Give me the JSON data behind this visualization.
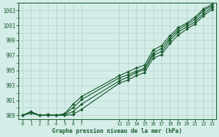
{
  "title": "Graphe pression niveau de la mer (hPa)",
  "background_color": "#d5ede8",
  "plot_bg_color": "#d5ede8",
  "grid_color": "#b0cfc8",
  "line_color": "#1a5c30",
  "ylim": [
    988.5,
    1004.0
  ],
  "yticks": [
    989,
    991,
    993,
    995,
    997,
    999,
    1001,
    1003
  ],
  "xticks_left": [
    0,
    1,
    2,
    3,
    4,
    5,
    6,
    7
  ],
  "xticks_right": [
    12,
    13,
    14,
    15,
    16,
    17,
    18,
    19,
    20,
    21,
    22,
    23
  ],
  "x_gap_start": 7,
  "x_gap_end": 12,
  "x_gap_plot_width": 4.5,
  "series": [
    {
      "x": [
        0,
        1,
        2,
        3,
        4,
        5,
        6,
        7,
        12,
        13,
        14,
        15,
        16,
        17,
        18,
        19,
        20,
        21,
        22,
        23
      ],
      "y": [
        989.0,
        989.5,
        989.0,
        989.1,
        989.0,
        989.2,
        990.5,
        991.5,
        994.3,
        994.8,
        995.3,
        995.7,
        997.7,
        998.3,
        999.6,
        1000.7,
        1001.3,
        1002.1,
        1003.2,
        1003.8
      ]
    },
    {
      "x": [
        0,
        1,
        2,
        3,
        4,
        5,
        6,
        7,
        12,
        13,
        14,
        15,
        16,
        17,
        18,
        19,
        20,
        21,
        22,
        23
      ],
      "y": [
        989.0,
        989.5,
        989.0,
        989.1,
        989.0,
        989.2,
        990.0,
        991.1,
        994.0,
        994.4,
        994.9,
        995.3,
        997.3,
        997.9,
        999.3,
        1000.4,
        1001.1,
        1001.8,
        1003.0,
        1003.6
      ]
    },
    {
      "x": [
        0,
        1,
        2,
        3,
        4,
        5,
        6,
        7,
        12,
        13,
        14,
        15,
        16,
        17,
        18,
        19,
        20,
        21,
        22,
        23
      ],
      "y": [
        989.0,
        989.4,
        989.0,
        989.0,
        989.0,
        989.1,
        989.5,
        990.5,
        993.6,
        994.1,
        994.7,
        995.1,
        997.0,
        997.5,
        999.0,
        1000.1,
        1000.8,
        1001.5,
        1002.6,
        1003.4
      ]
    },
    {
      "x": [
        0,
        1,
        2,
        3,
        4,
        5,
        6,
        7,
        12,
        13,
        14,
        15,
        16,
        17,
        18,
        19,
        20,
        21,
        22,
        23
      ],
      "y": [
        989.0,
        989.3,
        989.0,
        989.0,
        989.0,
        989.0,
        989.1,
        989.8,
        993.3,
        993.7,
        994.3,
        994.7,
        996.6,
        997.1,
        998.6,
        999.7,
        1000.5,
        1001.2,
        1002.3,
        1003.1
      ]
    }
  ]
}
